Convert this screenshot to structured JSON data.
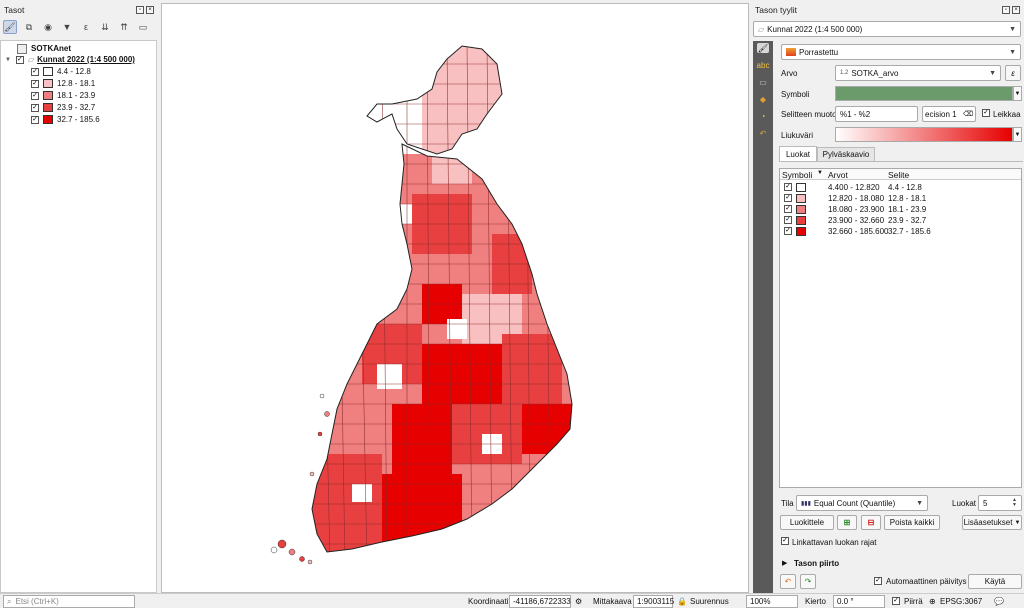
{
  "left_panel": {
    "title": "Tasot",
    "tree": {
      "group_label": "SOTKAnet",
      "layer_label": "Kunnat 2022 (1:4 500 000)",
      "classes": [
        {
          "label": "4.4 - 12.8",
          "color": "#ffffff"
        },
        {
          "label": "12.8 - 18.1",
          "color": "#f8c0c0"
        },
        {
          "label": "18.1 - 23.9",
          "color": "#f08080"
        },
        {
          "label": "23.9 - 32.7",
          "color": "#e84040"
        },
        {
          "label": "32.7 - 185.6",
          "color": "#e60000"
        }
      ]
    }
  },
  "right_panel": {
    "title": "Tason tyylit",
    "layer_combo": "Kunnat 2022 (1:4 500 000)",
    "renderer_combo": "Porrastettu",
    "value_label": "Arvo",
    "value_field": "SOTKA_arvo",
    "value_prefix": "1.2",
    "symbol_label": "Symboli",
    "symbol_color": "#6b9b6b",
    "legend_format_label": "Selitteen muoto",
    "legend_format_value": "%1 - %2",
    "precision_value": "ecision 1",
    "clip_label": "Leikkaa",
    "color_ramp_label": "Liukuväri",
    "tabs": {
      "classes": "Luokat",
      "histogram": "Pylväskaavio"
    },
    "table_headers": {
      "symbol": "Symboli",
      "values": "Arvot",
      "legend": "Selite"
    },
    "classes": [
      {
        "values": "4.400 - 12.820",
        "legend": "4.4 - 12.8",
        "color": "#ffffff"
      },
      {
        "values": "12.820 - 18.080",
        "legend": "12.8 - 18.1",
        "color": "#f8c0c0"
      },
      {
        "values": "18.080 - 23.900",
        "legend": "18.1 - 23.9",
        "color": "#f08080"
      },
      {
        "values": "23.900 - 32.660",
        "legend": "23.9 - 32.7",
        "color": "#e84040"
      },
      {
        "values": "32.660 - 185.600",
        "legend": "32.7 - 185.6",
        "color": "#e60000"
      }
    ],
    "mode_label": "Tila",
    "mode_value": "Equal Count (Quantile)",
    "classes_label": "Luokat",
    "classes_count": "5",
    "classify_button": "Luokittele",
    "delete_all_button": "Poista kaikki",
    "advanced_button": "Lisäasetukset",
    "link_class_bounds_label": "Linkattavan luokan rajat",
    "layer_rendering_label": "Tason piirto",
    "auto_update_label": "Automaattinen päivitys",
    "apply_button": "Käytä"
  },
  "status_bar": {
    "search_placeholder": "Etsi (Ctrl+K)",
    "coordinate_label": "Koordinaatit",
    "coordinate_value": "-41186,6722333",
    "scale_label": "Mittakaava",
    "scale_value": "1:9003115",
    "magnifier_label": "Suurennus",
    "magnifier_value": "100%",
    "rotation_label": "Kierto",
    "rotation_value": "0.0 °",
    "render_label": "Piirrä",
    "crs_label": "EPSG:3067"
  }
}
